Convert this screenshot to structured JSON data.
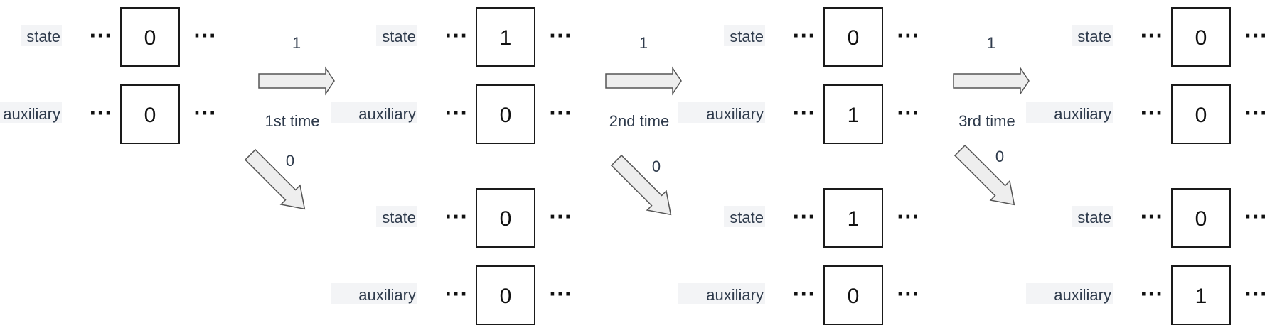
{
  "labels": {
    "state": "state",
    "auxiliary": "auxiliary",
    "ellipsis": "..."
  },
  "colors": {
    "arrow_fill": "#eeeeee",
    "arrow_stroke": "#555555",
    "label_bg": "#f3f4f6"
  },
  "columns": [
    {
      "upper": {
        "state": "0",
        "auxiliary": "0"
      },
      "lower": null
    },
    {
      "upper": {
        "state": "1",
        "auxiliary": "0"
      },
      "lower": {
        "state": "0",
        "auxiliary": "0"
      }
    },
    {
      "upper": {
        "state": "0",
        "auxiliary": "1"
      },
      "lower": {
        "state": "1",
        "auxiliary": "0"
      }
    },
    {
      "upper": {
        "state": "0",
        "auxiliary": "0"
      },
      "lower": {
        "state": "0",
        "auxiliary": "1"
      }
    }
  ],
  "transitions": [
    {
      "input_one": "1",
      "caption": "1st time",
      "input_zero": "0"
    },
    {
      "input_one": "1",
      "caption": "2nd time",
      "input_zero": "0"
    },
    {
      "input_one": "1",
      "caption": "3rd time",
      "input_zero": "0"
    }
  ]
}
